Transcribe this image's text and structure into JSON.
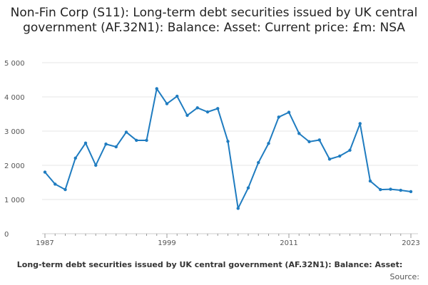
{
  "chart_data": {
    "type": "line",
    "title": "Non-Fin Corp (S11): Long-term debt securities issued by UK central government (AF.32N1): Balance: Asset: Current price: £m: NSA",
    "xlabel": "",
    "ylabel": "",
    "x": [
      1987,
      1988,
      1989,
      1990,
      1991,
      1992,
      1993,
      1994,
      1995,
      1996,
      1997,
      1998,
      1999,
      2000,
      2001,
      2002,
      2003,
      2004,
      2005,
      2006,
      2007,
      2008,
      2009,
      2010,
      2011,
      2012,
      2013,
      2014,
      2015,
      2016,
      2017,
      2018,
      2019,
      2020,
      2021,
      2022,
      2023
    ],
    "series": [
      {
        "name": "Long-term debt securities issued by UK central government (AF.32N1): Balance: Asset: Current price: £m: NSA",
        "color": "#1f7cc0",
        "values": [
          1800,
          1450,
          1290,
          2210,
          2650,
          2000,
          2620,
          2540,
          2970,
          2730,
          2730,
          4240,
          3800,
          4020,
          3460,
          3680,
          3560,
          3660,
          2700,
          740,
          1340,
          2080,
          2640,
          3410,
          3550,
          2930,
          2690,
          2740,
          2180,
          2270,
          2440,
          3220,
          1540,
          1290,
          1300,
          1270,
          1230
        ]
      }
    ],
    "ylim": [
      0,
      5000
    ],
    "yticks": [
      0,
      1000,
      2000,
      3000,
      4000,
      5000
    ],
    "ytick_labels": [
      "0",
      "1 000",
      "2 000",
      "3 000",
      "4 000",
      "5 000"
    ],
    "xticks": [
      1987,
      1999,
      2011,
      2023
    ],
    "xtick_labels": [
      "1987",
      "1999",
      "2011",
      "2023"
    ],
    "grid": true,
    "legend_position": "bottom",
    "legend_label": "Long-term debt securities issued by UK central government (AF.32N1): Balance: Asset:",
    "source_label": "Source:"
  }
}
